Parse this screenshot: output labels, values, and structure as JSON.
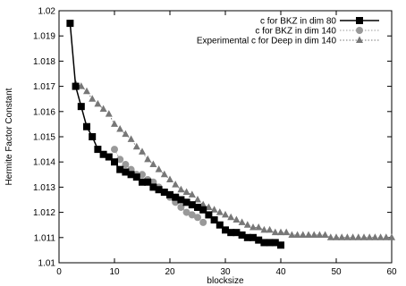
{
  "chart_data": {
    "type": "line",
    "xlabel": "blocksize",
    "ylabel": "Hermite Factor Constant",
    "xlim": [
      0,
      60
    ],
    "ylim": [
      1.01,
      1.02
    ],
    "x_ticks": [
      "0",
      "10",
      "20",
      "30",
      "40",
      "50",
      "60"
    ],
    "y_ticks": [
      "1.01",
      "1.011",
      "1.012",
      "1.013",
      "1.014",
      "1.015",
      "1.016",
      "1.017",
      "1.018",
      "1.019",
      "1.02"
    ],
    "grid": false,
    "legend_position": "top-right",
    "series": [
      {
        "name": "c for BKZ in dim 80",
        "color": "#000000",
        "marker": "square",
        "line": "solid",
        "x": [
          2,
          3,
          4,
          5,
          6,
          7,
          8,
          9,
          10,
          11,
          12,
          13,
          14,
          15,
          16,
          17,
          18,
          19,
          20,
          21,
          22,
          23,
          24,
          25,
          26,
          27,
          28,
          29,
          30,
          31,
          32,
          33,
          34,
          35,
          36,
          37,
          38,
          39,
          40
        ],
        "y": [
          1.0195,
          1.017,
          1.0162,
          1.0154,
          1.015,
          1.0145,
          1.0143,
          1.0142,
          1.014,
          1.0137,
          1.0136,
          1.0135,
          1.0134,
          1.0132,
          1.0132,
          1.013,
          1.0129,
          1.0128,
          1.0127,
          1.0126,
          1.0125,
          1.0124,
          1.0123,
          1.0122,
          1.0121,
          1.0119,
          1.0117,
          1.0115,
          1.0113,
          1.0112,
          1.0112,
          1.0111,
          1.011,
          1.011,
          1.0109,
          1.0108,
          1.0108,
          1.0108,
          1.0107
        ]
      },
      {
        "name": "c for BKZ in dim 140",
        "color": "#999999",
        "marker": "circle",
        "line": "dotted",
        "x": [
          10,
          11,
          12,
          13,
          14,
          15,
          16,
          17,
          18,
          19,
          20,
          21,
          22,
          23,
          24,
          25,
          26
        ],
        "y": [
          1.0145,
          1.0141,
          1.0139,
          1.0137,
          1.0135,
          1.0135,
          1.0133,
          1.0132,
          1.013,
          1.0128,
          1.0126,
          1.0124,
          1.0122,
          1.012,
          1.0119,
          1.0118,
          1.0116
        ]
      },
      {
        "name": "Experimental c for Deep in dim 140",
        "color": "#777777",
        "marker": "triangle",
        "line": "dotted",
        "x": [
          3,
          4,
          5,
          6,
          7,
          8,
          9,
          10,
          11,
          12,
          13,
          14,
          15,
          16,
          17,
          18,
          19,
          20,
          21,
          22,
          23,
          24,
          25,
          26,
          27,
          28,
          29,
          30,
          31,
          32,
          33,
          34,
          35,
          36,
          37,
          38,
          39,
          40,
          41,
          42,
          43,
          44,
          45,
          46,
          47,
          48,
          49,
          50,
          51,
          52,
          53,
          54,
          55,
          56,
          57,
          58,
          59,
          60
        ],
        "y": [
          1.0171,
          1.017,
          1.0168,
          1.0165,
          1.0163,
          1.0161,
          1.0159,
          1.0155,
          1.0153,
          1.0151,
          1.0149,
          1.0146,
          1.0144,
          1.0141,
          1.0139,
          1.0137,
          1.0135,
          1.0133,
          1.0131,
          1.0129,
          1.0128,
          1.0127,
          1.0125,
          1.0123,
          1.0122,
          1.0121,
          1.012,
          1.0119,
          1.0118,
          1.0117,
          1.0116,
          1.0115,
          1.0114,
          1.0114,
          1.0113,
          1.0113,
          1.0112,
          1.0112,
          1.0112,
          1.0111,
          1.0111,
          1.0111,
          1.0111,
          1.0111,
          1.0111,
          1.0111,
          1.011,
          1.011,
          1.011,
          1.011,
          1.011,
          1.011,
          1.011,
          1.011,
          1.011,
          1.011,
          1.011,
          1.011
        ]
      }
    ]
  }
}
